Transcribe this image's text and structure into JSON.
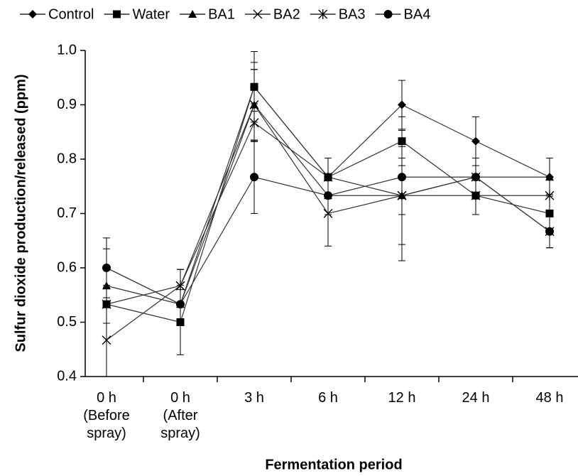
{
  "chart_data": {
    "type": "line",
    "x_label": "Fermentation period",
    "y_label": "Sulfur dioxide production/released (ppm)",
    "categories": [
      "0 h (Before spray)",
      "0 h (After spray)",
      "3 h",
      "6 h",
      "12 h",
      "24 h",
      "48 h"
    ],
    "series": [
      {
        "name": "Control",
        "color": "#000000",
        "marker": "diamond",
        "values": [
          0.6,
          0.533,
          0.933,
          0.767,
          0.9,
          0.833,
          0.767
        ],
        "errors": [
          0.055,
          0.035,
          0.065,
          0.035,
          0.045,
          0.045,
          0.035
        ]
      },
      {
        "name": "Water",
        "color": "#000000",
        "marker": "square",
        "values": [
          0.533,
          0.5,
          0.933,
          0.767,
          0.833,
          0.733,
          0.7
        ],
        "errors": [
          0.035,
          0.06,
          0.045,
          0.035,
          0.045,
          0.035,
          0.035
        ]
      },
      {
        "name": "BA1",
        "color": "#000000",
        "marker": "triangle",
        "values": [
          0.567,
          0.533,
          0.9,
          0.733,
          0.733,
          0.767,
          0.767
        ],
        "errors": [
          0.035,
          0.035,
          0.065,
          0.035,
          0.035,
          0.035,
          0.035
        ]
      },
      {
        "name": "BA2",
        "color": "#000000",
        "marker": "x",
        "values": [
          0.467,
          0.567,
          0.9,
          0.7,
          0.733,
          0.767,
          0.667
        ],
        "errors": [
          0.067,
          0.03,
          0.065,
          0.06,
          0.12,
          0.035,
          0.03
        ]
      },
      {
        "name": "BA3",
        "color": "#000000",
        "marker": "star",
        "values": [
          0.533,
          0.567,
          0.867,
          0.767,
          0.733,
          0.733,
          0.733
        ],
        "errors": [
          0.035,
          0.03,
          0.035,
          0.035,
          0.09,
          0.035,
          0.035
        ]
      },
      {
        "name": "BA4",
        "color": "#000000",
        "marker": "circle",
        "values": [
          0.6,
          0.533,
          0.767,
          0.733,
          0.767,
          0.767,
          0.667
        ],
        "errors": [
          0.035,
          0.035,
          0.067,
          0.035,
          0.035,
          0.035,
          0.03
        ]
      }
    ],
    "ylim": [
      0.4,
      1.0
    ],
    "yticks": [
      0.4,
      0.5,
      0.6,
      0.7,
      0.8,
      0.9,
      {
        "value": 1.0,
        "label": "1.0"
      }
    ],
    "legend": "top"
  }
}
